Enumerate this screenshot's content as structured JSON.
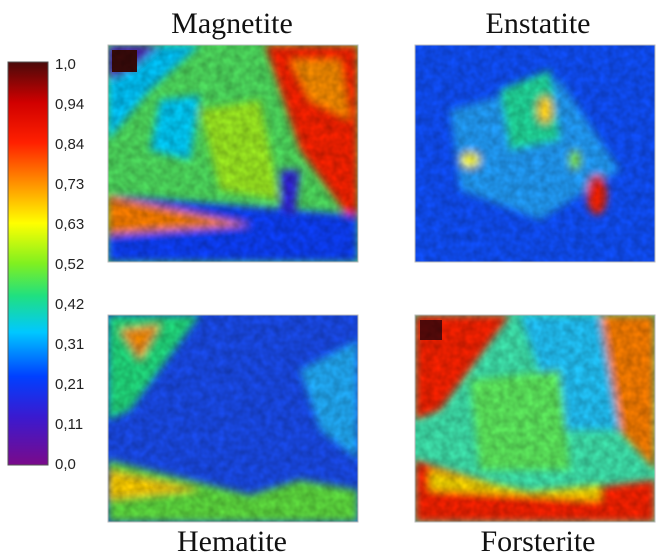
{
  "colorbar": {
    "ticks": [
      "1,0",
      "0,94",
      "0,84",
      "0,73",
      "0,63",
      "0,52",
      "0,42",
      "0,31",
      "0,21",
      "0,11",
      "0,0"
    ]
  },
  "panels": [
    {
      "title": "Magnetite"
    },
    {
      "title": "Enstatite"
    },
    {
      "title": "Hematite"
    },
    {
      "title": "Forsterite"
    }
  ]
}
